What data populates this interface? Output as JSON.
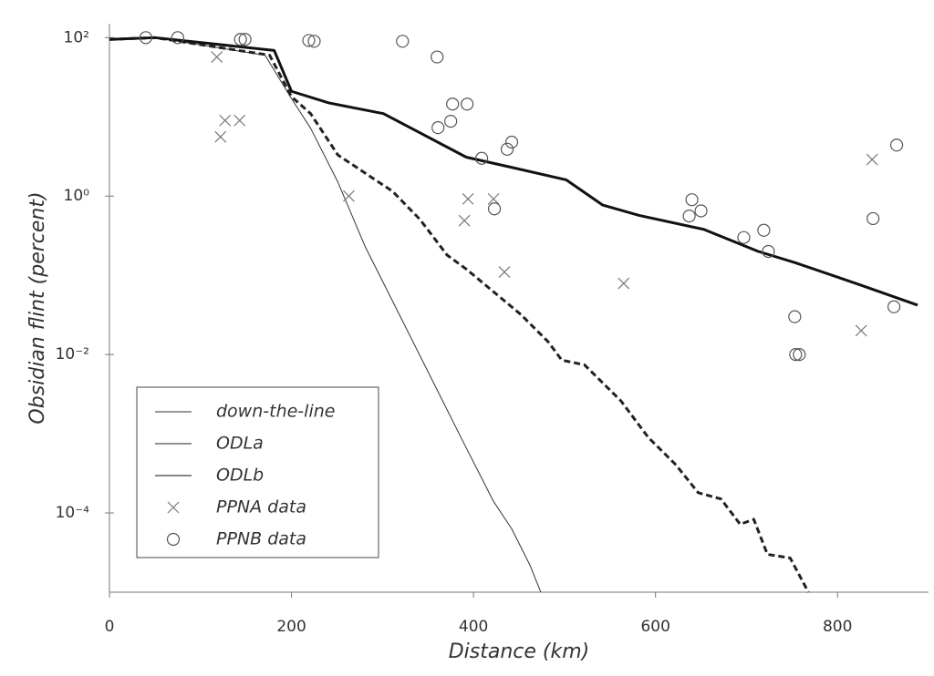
{
  "chart_data": {
    "type": "line",
    "x_label": "Distance (km)",
    "y_label": "Obsidian flint (percent)",
    "xlim": [
      0,
      900
    ],
    "xticks": [
      0,
      200,
      400,
      600,
      800
    ],
    "ylim": [
      1e-05,
      150
    ],
    "log_y": true,
    "yticks": [
      {
        "value": 100,
        "label": "10²"
      },
      {
        "value": 1,
        "label": "10⁰"
      },
      {
        "value": 0.01,
        "label": "10⁻²"
      },
      {
        "value": 0.0001,
        "label": "10⁻⁴"
      }
    ],
    "legend": "bottom-left",
    "series": [
      {
        "name": "down-the-line",
        "mode": "line",
        "color": "#333333",
        "width": 1,
        "dash": false,
        "x": [
          0,
          50,
          171,
          200,
          221,
          251,
          281,
          321,
          361,
          391,
          422,
          442,
          462,
          474
        ],
        "values": [
          95,
          100,
          60,
          17,
          7.2,
          1.5,
          0.23,
          0.028,
          0.0034,
          0.0007,
          0.00014,
          6.3e-05,
          2.2e-05,
          1e-05
        ]
      },
      {
        "name": "ODLa",
        "mode": "line",
        "color": "#222222",
        "width": 3,
        "dash": true,
        "x": [
          0,
          50,
          176,
          200,
          221,
          251,
          281,
          311,
          341,
          371,
          392,
          422,
          452,
          482,
          497,
          522,
          562,
          592,
          622,
          647,
          672,
          693,
          708,
          723,
          748,
          768
        ],
        "values": [
          95,
          100,
          60,
          18,
          11,
          3.3,
          1.95,
          1.15,
          0.51,
          0.18,
          0.12,
          0.062,
          0.032,
          0.0145,
          0.0085,
          0.0074,
          0.0026,
          0.0009,
          0.00041,
          0.00018,
          0.00015,
          7.2e-05,
          8.3e-05,
          3e-05,
          2.7e-05,
          1e-05
        ]
      },
      {
        "name": "ODLb",
        "mode": "line",
        "color": "#111111",
        "width": 3,
        "dash": false,
        "x": [
          0,
          50,
          181,
          200,
          241,
          301,
          341,
          392,
          442,
          502,
          542,
          582,
          653,
          713,
          753,
          823,
          888
        ],
        "values": [
          95,
          100,
          69,
          21,
          15,
          11,
          6.3,
          3.1,
          2.3,
          1.6,
          0.77,
          0.57,
          0.38,
          0.2,
          0.145,
          0.077,
          0.042
        ]
      },
      {
        "name": "PPNA data",
        "mode": "x",
        "color": "#777777",
        "x": [
          118,
          122,
          127,
          143,
          263,
          394,
          390,
          422,
          434,
          565,
          826,
          838
        ],
        "values": [
          57,
          5.6,
          9,
          9,
          1.0,
          0.92,
          0.49,
          0.92,
          0.11,
          0.079,
          0.02,
          2.9
        ]
      },
      {
        "name": "PPNB data",
        "mode": "circle",
        "color": "#555555",
        "x": [
          40,
          75,
          144,
          149,
          219,
          225,
          322,
          360,
          377,
          393,
          375,
          361,
          442,
          437,
          409,
          423,
          640,
          637,
          650,
          697,
          719,
          724,
          753,
          754,
          758,
          839,
          865,
          862
        ],
        "values": [
          100,
          100,
          95,
          95,
          92,
          90,
          90,
          57,
          14.5,
          14.5,
          8.8,
          7.3,
          4.8,
          3.9,
          3.0,
          0.69,
          0.9,
          0.56,
          0.65,
          0.3,
          0.37,
          0.2,
          0.03,
          0.01,
          0.01,
          0.52,
          4.4,
          0.04
        ]
      }
    ]
  }
}
